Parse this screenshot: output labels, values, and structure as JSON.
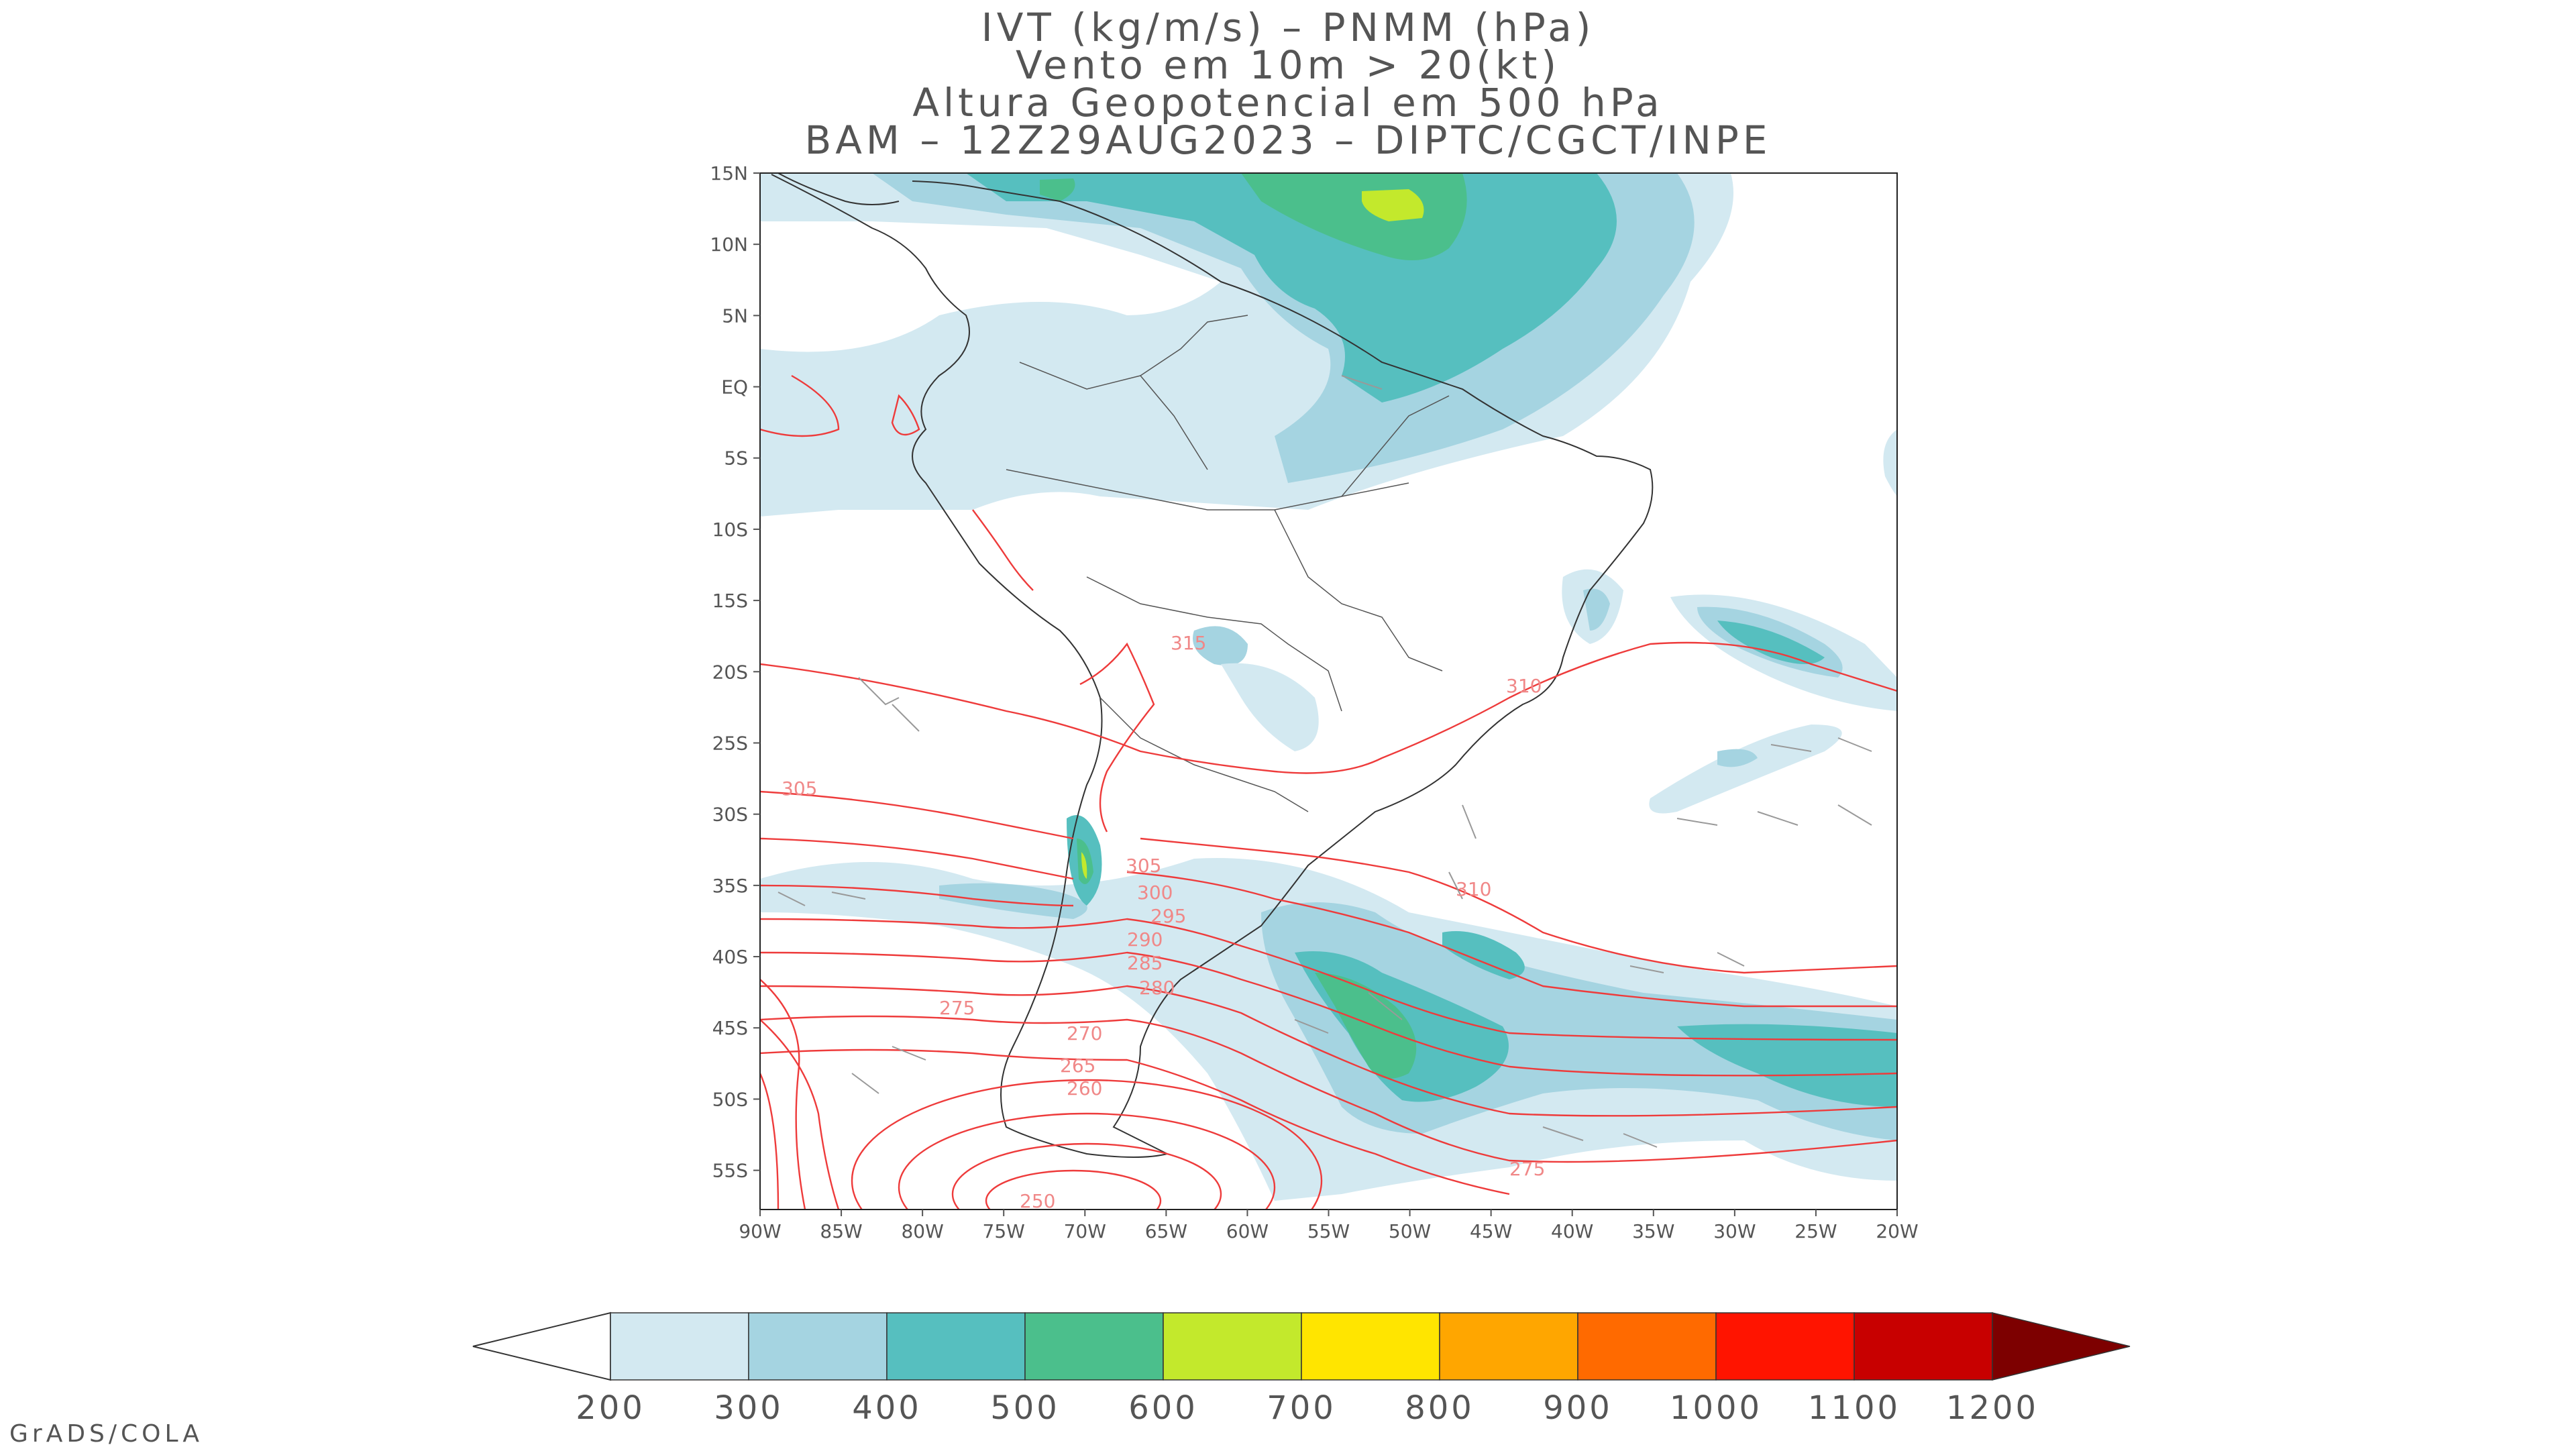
{
  "title": {
    "line1": "IVT (kg/m/s) – PNMM (hPa)",
    "line2": "Vento em 10m > 20(kt)",
    "line3": "Altura Geopotencial em 500 hPa",
    "line4": "BAM – 12Z29AUG2023 – DIPTC/CGCT/INPE"
  },
  "axes": {
    "lat_ticks": [
      "15N",
      "10N",
      "5N",
      "EQ",
      "5S",
      "10S",
      "15S",
      "20S",
      "25S",
      "30S",
      "35S",
      "40S",
      "45S",
      "50S",
      "55S"
    ],
    "lon_ticks": [
      "90W",
      "85W",
      "80W",
      "75W",
      "70W",
      "65W",
      "60W",
      "55W",
      "50W",
      "45W",
      "40W",
      "35W",
      "30W",
      "25W",
      "20W"
    ]
  },
  "contour_labels": [
    "315",
    "310",
    "305",
    "305",
    "300",
    "295",
    "290",
    "285",
    "280",
    "275",
    "270",
    "265",
    "260",
    "250",
    "310",
    "275"
  ],
  "colorbar": {
    "labels": [
      "200",
      "300",
      "400",
      "500",
      "600",
      "700",
      "800",
      "900",
      "1000",
      "1100",
      "1200"
    ],
    "colors": [
      "#d3e9f1",
      "#a5d4e1",
      "#56bfbf",
      "#4bbf8c",
      "#c3e92c",
      "#ffe500",
      "#ffa600",
      "#ff6a00",
      "#ff1400",
      "#c80000",
      "#7d0000"
    ]
  },
  "footer": "GrADS/COLA",
  "colors": {
    "contour": "#ee3b3b",
    "contour_label": "#f08888",
    "land": "#ffffff",
    "border": "#333333",
    "wind_barb": "#999999"
  }
}
